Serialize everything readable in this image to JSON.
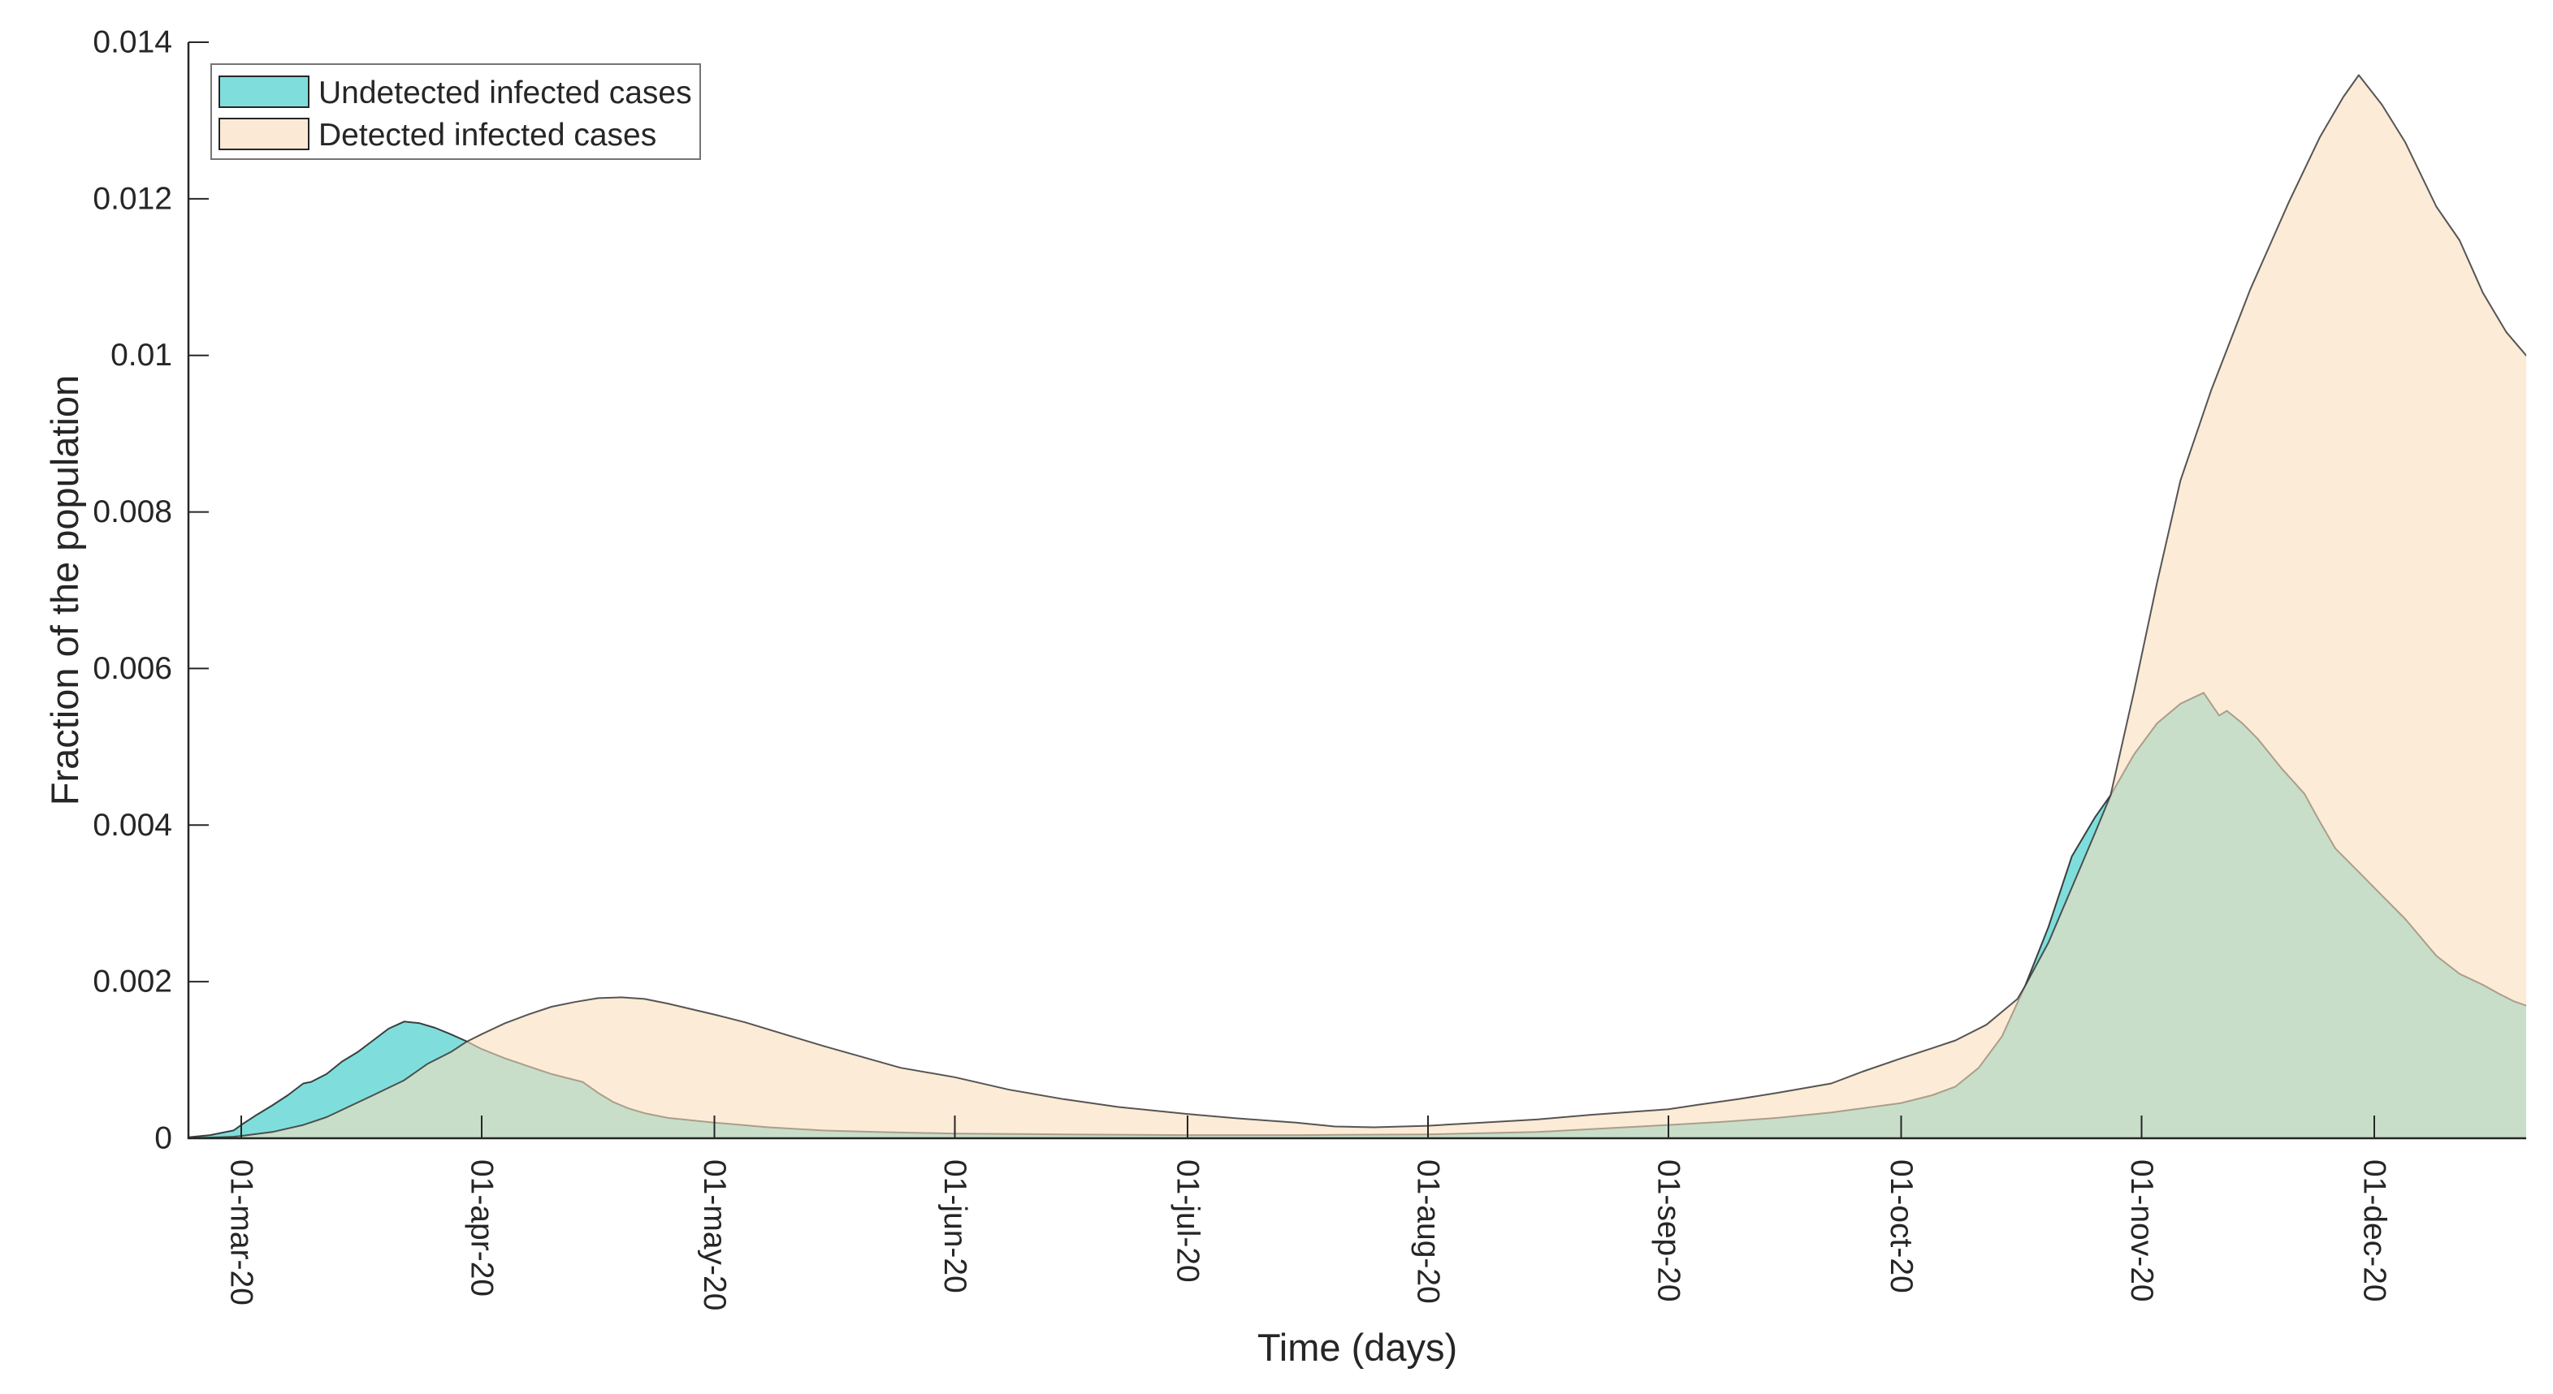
{
  "figure": {
    "background": "#ffffff",
    "axis_color": "#262626",
    "text_color": "#262626",
    "legend_border_color": "#757575"
  },
  "legend": {
    "position": "top-left",
    "items": [
      {
        "label": "Undetected infected cases",
        "swatch_color": "#7FDEDB",
        "swatch_icon": "cyan-area-swatch"
      },
      {
        "label": "Detected infected cases",
        "swatch_color": "#FBE9D6",
        "swatch_icon": "peach-area-swatch"
      }
    ]
  },
  "chart_data": {
    "type": "area",
    "title": "",
    "xlabel": "Time (days)",
    "ylabel": "Fraction of the population",
    "x_range": [
      "2020-02-23",
      "2020-12-21"
    ],
    "ylim": [
      0,
      0.014
    ],
    "grid": false,
    "legend_position": "top-left",
    "y_ticks": [
      {
        "value": 0,
        "label": "0"
      },
      {
        "value": 0.002,
        "label": "0.002"
      },
      {
        "value": 0.004,
        "label": "0.004"
      },
      {
        "value": 0.006,
        "label": "0.006"
      },
      {
        "value": 0.008,
        "label": "0.008"
      },
      {
        "value": 0.01,
        "label": "0.01"
      },
      {
        "value": 0.012,
        "label": "0.012"
      },
      {
        "value": 0.014,
        "label": "0.014"
      }
    ],
    "x_ticks": [
      {
        "date": "2020-03-01",
        "label": "01-mar-20"
      },
      {
        "date": "2020-04-01",
        "label": "01-apr-20"
      },
      {
        "date": "2020-05-01",
        "label": "01-may-20"
      },
      {
        "date": "2020-06-01",
        "label": "01-jun-20"
      },
      {
        "date": "2020-07-01",
        "label": "01-jul-20"
      },
      {
        "date": "2020-08-01",
        "label": "01-aug-20"
      },
      {
        "date": "2020-09-01",
        "label": "01-sep-20"
      },
      {
        "date": "2020-10-01",
        "label": "01-oct-20"
      },
      {
        "date": "2020-11-01",
        "label": "01-nov-20"
      },
      {
        "date": "2020-12-01",
        "label": "01-dec-20"
      }
    ],
    "series": [
      {
        "name": "Undetected infected cases",
        "fill_color": "#7FDEDB",
        "fill_opacity": 1,
        "stroke_color": "#2b2b2b",
        "stroke_opacity": 0.9,
        "points": [
          [
            "2020-02-23",
            1e-05
          ],
          [
            "2020-02-26",
            4e-05
          ],
          [
            "2020-02-29",
            0.0001
          ],
          [
            "2020-03-01",
            0.00017
          ],
          [
            "2020-03-03",
            0.0003
          ],
          [
            "2020-03-05",
            0.00042
          ],
          [
            "2020-03-07",
            0.00055
          ],
          [
            "2020-03-09",
            0.0007
          ],
          [
            "2020-03-10",
            0.00072
          ],
          [
            "2020-03-12",
            0.00082
          ],
          [
            "2020-03-14",
            0.00098
          ],
          [
            "2020-03-16",
            0.0011
          ],
          [
            "2020-03-18",
            0.00125
          ],
          [
            "2020-03-20",
            0.0014
          ],
          [
            "2020-03-22",
            0.00149
          ],
          [
            "2020-03-24",
            0.00147
          ],
          [
            "2020-03-26",
            0.00141
          ],
          [
            "2020-03-28",
            0.00133
          ],
          [
            "2020-03-30",
            0.00124
          ],
          [
            "2020-04-01",
            0.00114
          ],
          [
            "2020-04-04",
            0.00102
          ],
          [
            "2020-04-07",
            0.00092
          ],
          [
            "2020-04-10",
            0.00082
          ],
          [
            "2020-04-14",
            0.00072
          ],
          [
            "2020-04-16",
            0.00058
          ],
          [
            "2020-04-18",
            0.00046
          ],
          [
            "2020-04-20",
            0.00038
          ],
          [
            "2020-04-22",
            0.00032
          ],
          [
            "2020-04-25",
            0.00026
          ],
          [
            "2020-05-01",
            0.0002
          ],
          [
            "2020-05-08",
            0.00014
          ],
          [
            "2020-05-15",
            0.0001
          ],
          [
            "2020-05-22",
            8e-05
          ],
          [
            "2020-06-01",
            6e-05
          ],
          [
            "2020-06-15",
            5e-05
          ],
          [
            "2020-07-01",
            4e-05
          ],
          [
            "2020-07-15",
            4e-05
          ],
          [
            "2020-08-01",
            5e-05
          ],
          [
            "2020-08-15",
            8e-05
          ],
          [
            "2020-09-01",
            0.00017
          ],
          [
            "2020-09-08",
            0.00021
          ],
          [
            "2020-09-15",
            0.00026
          ],
          [
            "2020-09-22",
            0.00033
          ],
          [
            "2020-10-01",
            0.00045
          ],
          [
            "2020-10-05",
            0.00055
          ],
          [
            "2020-10-08",
            0.00066
          ],
          [
            "2020-10-11",
            0.0009
          ],
          [
            "2020-10-14",
            0.0013
          ],
          [
            "2020-10-17",
            0.00195
          ],
          [
            "2020-10-20",
            0.0027
          ],
          [
            "2020-10-23",
            0.0036
          ],
          [
            "2020-10-26",
            0.0041
          ],
          [
            "2020-10-28",
            0.00438
          ],
          [
            "2020-10-31",
            0.0049
          ],
          [
            "2020-11-03",
            0.0053
          ],
          [
            "2020-11-06",
            0.00555
          ],
          [
            "2020-11-09",
            0.00569
          ],
          [
            "2020-11-11",
            0.0054
          ],
          [
            "2020-11-12",
            0.00546
          ],
          [
            "2020-11-14",
            0.0053
          ],
          [
            "2020-11-16",
            0.0051
          ],
          [
            "2020-11-19",
            0.00473
          ],
          [
            "2020-11-22",
            0.0044
          ],
          [
            "2020-11-24",
            0.00404
          ],
          [
            "2020-11-26",
            0.0037
          ],
          [
            "2020-11-29",
            0.0034
          ],
          [
            "2020-12-02",
            0.0031
          ],
          [
            "2020-12-05",
            0.0028
          ],
          [
            "2020-12-09",
            0.00233
          ],
          [
            "2020-12-12",
            0.0021
          ],
          [
            "2020-12-15",
            0.00196
          ],
          [
            "2020-12-17",
            0.00185
          ],
          [
            "2020-12-19",
            0.00175
          ],
          [
            "2020-12-21",
            0.00168
          ]
        ]
      },
      {
        "name": "Detected infected cases",
        "fill_color": "#F9DDBD",
        "fill_opacity": 0.6,
        "stroke_color": "#383838",
        "stroke_opacity": 0.85,
        "points": [
          [
            "2020-02-23",
            0.0
          ],
          [
            "2020-02-29",
            2e-05
          ],
          [
            "2020-03-01",
            3e-05
          ],
          [
            "2020-03-05",
            8e-05
          ],
          [
            "2020-03-09",
            0.00017
          ],
          [
            "2020-03-12",
            0.00027
          ],
          [
            "2020-03-15",
            0.00041
          ],
          [
            "2020-03-18",
            0.00055
          ],
          [
            "2020-03-22",
            0.00074
          ],
          [
            "2020-03-25",
            0.00095
          ],
          [
            "2020-03-28",
            0.0011
          ],
          [
            "2020-03-30",
            0.00123
          ],
          [
            "2020-04-01",
            0.00133
          ],
          [
            "2020-04-04",
            0.00147
          ],
          [
            "2020-04-07",
            0.00158
          ],
          [
            "2020-04-10",
            0.00168
          ],
          [
            "2020-04-13",
            0.00174
          ],
          [
            "2020-04-16",
            0.00179
          ],
          [
            "2020-04-19",
            0.0018
          ],
          [
            "2020-04-22",
            0.00178
          ],
          [
            "2020-04-25",
            0.00172
          ],
          [
            "2020-05-01",
            0.00158
          ],
          [
            "2020-05-05",
            0.00148
          ],
          [
            "2020-05-10",
            0.00133
          ],
          [
            "2020-05-15",
            0.00118
          ],
          [
            "2020-05-20",
            0.00104
          ],
          [
            "2020-05-25",
            0.0009
          ],
          [
            "2020-06-01",
            0.00078
          ],
          [
            "2020-06-08",
            0.00062
          ],
          [
            "2020-06-15",
            0.0005
          ],
          [
            "2020-06-22",
            0.0004
          ],
          [
            "2020-07-01",
            0.00031
          ],
          [
            "2020-07-08",
            0.00025
          ],
          [
            "2020-07-15",
            0.0002
          ],
          [
            "2020-07-20",
            0.00015
          ],
          [
            "2020-07-25",
            0.00014
          ],
          [
            "2020-08-01",
            0.00016
          ],
          [
            "2020-08-08",
            0.0002
          ],
          [
            "2020-08-15",
            0.00024
          ],
          [
            "2020-08-22",
            0.0003
          ],
          [
            "2020-09-01",
            0.00037
          ],
          [
            "2020-09-05",
            0.00043
          ],
          [
            "2020-09-10",
            0.0005
          ],
          [
            "2020-09-15",
            0.00058
          ],
          [
            "2020-09-22",
            0.0007
          ],
          [
            "2020-09-26",
            0.00085
          ],
          [
            "2020-10-01",
            0.00102
          ],
          [
            "2020-10-05",
            0.00115
          ],
          [
            "2020-10-08",
            0.00125
          ],
          [
            "2020-10-12",
            0.00145
          ],
          [
            "2020-10-16",
            0.00178
          ],
          [
            "2020-10-17",
            0.00195
          ],
          [
            "2020-10-20",
            0.0025
          ],
          [
            "2020-10-23",
            0.0032
          ],
          [
            "2020-10-26",
            0.0039
          ],
          [
            "2020-10-28",
            0.00438
          ],
          [
            "2020-10-31",
            0.0057
          ],
          [
            "2020-11-03",
            0.0071
          ],
          [
            "2020-11-06",
            0.0084
          ],
          [
            "2020-11-10",
            0.00956
          ],
          [
            "2020-11-15",
            0.01084
          ],
          [
            "2020-11-20",
            0.01196
          ],
          [
            "2020-11-24",
            0.01279
          ],
          [
            "2020-11-27",
            0.0133
          ],
          [
            "2020-11-29",
            0.01358
          ],
          [
            "2020-12-02",
            0.0132
          ],
          [
            "2020-12-05",
            0.01272
          ],
          [
            "2020-12-09",
            0.0119
          ],
          [
            "2020-12-12",
            0.01147
          ],
          [
            "2020-12-15",
            0.0108
          ],
          [
            "2020-12-18",
            0.0103
          ],
          [
            "2020-12-21",
            0.00995
          ]
        ]
      }
    ]
  }
}
